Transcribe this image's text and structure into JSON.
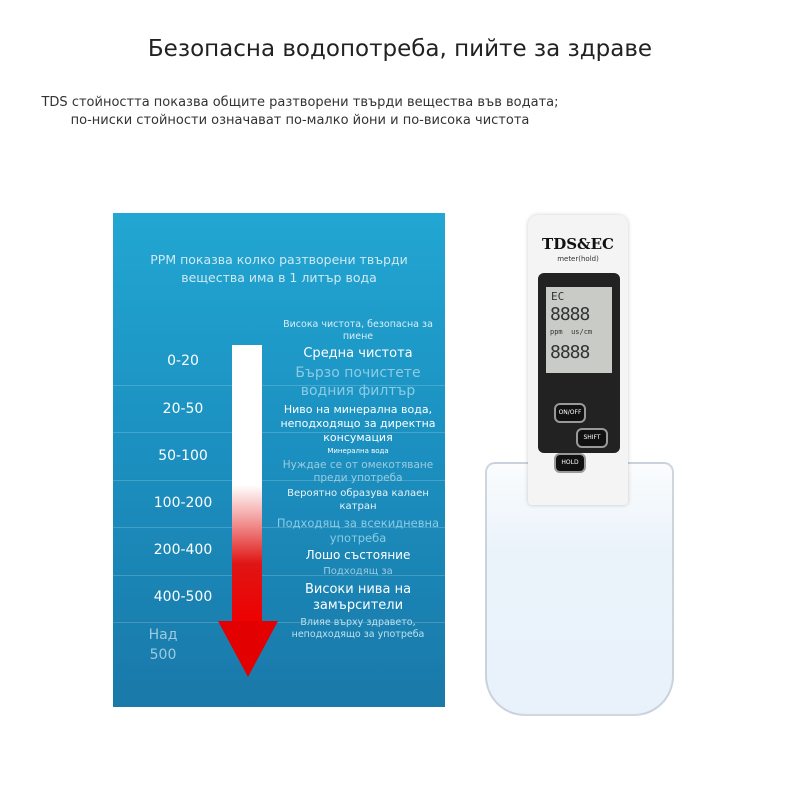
{
  "header": {
    "title": "Безопасна водопотреба, пийте за здраве",
    "subtitle_line1": "TDS стойността показва общите разтворени твърди вещества във водата;",
    "subtitle_line2": "по-ниски стойности означават по-малко йони и по-висока чистота"
  },
  "panel": {
    "intro": "PPM показва колко разтворени твърди вещества има в 1 литър вода",
    "ranges": [
      "0-20",
      "20-50",
      "50-100",
      "100-200",
      "200-400",
      "400-500",
      "Над 500"
    ],
    "descriptions": {
      "d1": "Висока чистота, безопасна за пиене",
      "d2": "Средна чистота",
      "d3": "Бързо почистете водния филтър",
      "d4": "Ниво на минерална вода, неподходящо за директна консумация",
      "d4b": "Минерална вода",
      "d5": "Нуждае се от омекотяване преди употреба",
      "d6": "Вероятно образува калаен катран",
      "d7": "Подходящ за всекидневна употреба",
      "d8": "Лошо състояние",
      "d9": "Подходящ за",
      "d10": "Високи нива на замърсители",
      "d11": "Влияе върху здравето, неподходящо за употреба"
    },
    "colors": {
      "bar_top": "#ffffff",
      "bar_bottom": "#e30000",
      "panel": "#1b8fbf"
    }
  },
  "meter": {
    "brand": "TDS&EC",
    "model": "meter(hold)",
    "mode": "EC",
    "digits1": "8888",
    "units": "ppm  us/cm",
    "digits2": "8888",
    "buttons": [
      "ON/OFF",
      "SHIFT",
      "HOLD"
    ]
  }
}
